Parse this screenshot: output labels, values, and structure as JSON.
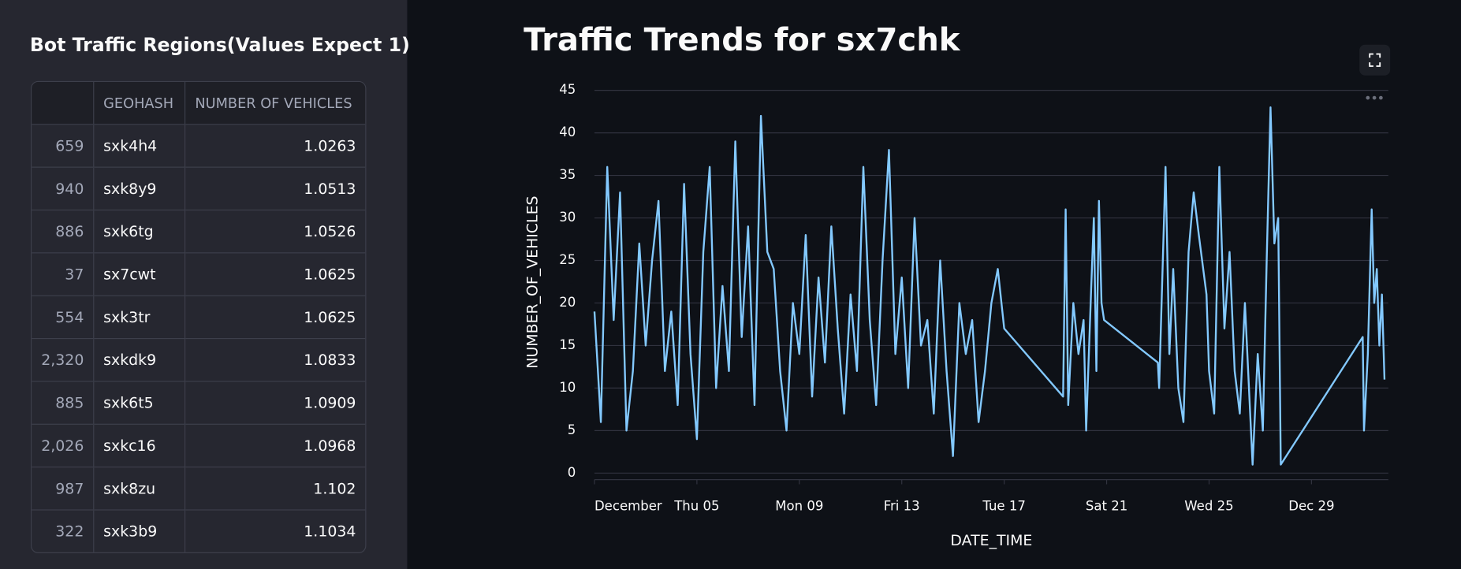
{
  "sidebar": {
    "title": "Bot Traffic Regions(Values Expect 1)",
    "table": {
      "columns": [
        "GEOHASH",
        "NUMBER OF VEHICLES"
      ],
      "rows": [
        [
          "659",
          "sxk4h4",
          "1.0263"
        ],
        [
          "940",
          "sxk8y9",
          "1.0513"
        ],
        [
          "886",
          "sxk6tg",
          "1.0526"
        ],
        [
          "37",
          "sx7cwt",
          "1.0625"
        ],
        [
          "554",
          "sxk3tr",
          "1.0625"
        ],
        [
          "2,320",
          "sxkdk9",
          "1.0833"
        ],
        [
          "885",
          "sxk6t5",
          "1.0909"
        ],
        [
          "2,026",
          "sxkc16",
          "1.0968"
        ],
        [
          "987",
          "sxk8zu",
          "1.102"
        ],
        [
          "322",
          "sxk3b9",
          "1.1034"
        ]
      ]
    }
  },
  "chart_data": {
    "type": "line",
    "title": "Traffic Trends for sx7chk",
    "x_label": "DATE_TIME",
    "y_label": "NUMBER_OF_VEHICLES",
    "color": "#83c9ff",
    "grid": true,
    "x": [
      1.0,
      1.25,
      1.5,
      1.75,
      2.0,
      2.25,
      2.5,
      2.75,
      3.0,
      3.25,
      3.5,
      3.75,
      4.0,
      4.25,
      4.5,
      4.75,
      5.0,
      5.25,
      5.5,
      5.75,
      6.0,
      6.25,
      6.5,
      6.75,
      7.0,
      7.25,
      7.5,
      7.75,
      8.0,
      8.25,
      8.5,
      8.75,
      9.0,
      9.25,
      9.5,
      9.75,
      10.0,
      10.25,
      10.5,
      10.75,
      11.0,
      11.25,
      11.5,
      11.75,
      12.0,
      12.25,
      12.5,
      12.75,
      13.0,
      13.25,
      13.5,
      13.75,
      14.0,
      14.25,
      14.5,
      14.75,
      15.0,
      15.25,
      15.5,
      15.75,
      16.0,
      16.25,
      16.5,
      16.75,
      17.0,
      19.3,
      19.4,
      19.5,
      19.7,
      19.9,
      20.1,
      20.2,
      20.4,
      20.5,
      20.6,
      20.7,
      20.8,
      20.9,
      23.0,
      23.05,
      23.3,
      23.45,
      23.6,
      23.8,
      24.0,
      24.2,
      24.4,
      24.6,
      24.9,
      25.0,
      25.2,
      25.4,
      25.6,
      25.8,
      26.0,
      26.2,
      26.4,
      26.7,
      26.9,
      27.1,
      27.25,
      27.4,
      27.55,
      27.7,
      27.8,
      31.0,
      31.05,
      31.2,
      31.35,
      31.45,
      31.55,
      31.65,
      31.75,
      31.85
    ],
    "values": [
      19,
      6,
      36,
      18,
      33,
      5,
      12,
      27,
      15,
      25,
      32,
      12,
      19,
      8,
      34,
      14,
      4,
      26,
      36,
      10,
      22,
      12,
      39,
      16,
      29,
      8,
      42,
      26,
      24,
      12,
      5,
      20,
      14,
      28,
      9,
      23,
      13,
      29,
      17,
      7,
      21,
      12,
      36,
      18,
      8,
      25,
      38,
      14,
      23,
      10,
      30,
      15,
      18,
      7,
      25,
      12,
      2,
      20,
      14,
      18,
      6,
      12,
      20,
      24,
      17,
      9,
      31,
      8,
      20,
      14,
      18,
      5,
      22,
      30,
      12,
      32,
      20,
      18,
      13,
      10,
      36,
      14,
      24,
      10,
      6,
      26,
      33,
      28,
      21,
      12,
      7,
      36,
      17,
      26,
      12,
      7,
      20,
      1,
      14,
      5,
      25,
      43,
      27,
      30,
      1,
      16,
      5,
      14,
      31,
      20,
      24,
      15,
      21,
      11
    ],
    "xlim": [
      1,
      32
    ],
    "xticks": [
      {
        "value": 1,
        "label": "December"
      },
      {
        "value": 5,
        "label": "Thu 05"
      },
      {
        "value": 9,
        "label": "Mon 09"
      },
      {
        "value": 13,
        "label": "Fri 13"
      },
      {
        "value": 17,
        "label": "Tue 17"
      },
      {
        "value": 21,
        "label": "Sat 21"
      },
      {
        "value": 25,
        "label": "Wed 25"
      },
      {
        "value": 29,
        "label": "Dec 29"
      }
    ],
    "ylim": [
      0,
      45
    ],
    "yticks": [
      0,
      5,
      10,
      15,
      20,
      25,
      30,
      35,
      40,
      45
    ]
  }
}
